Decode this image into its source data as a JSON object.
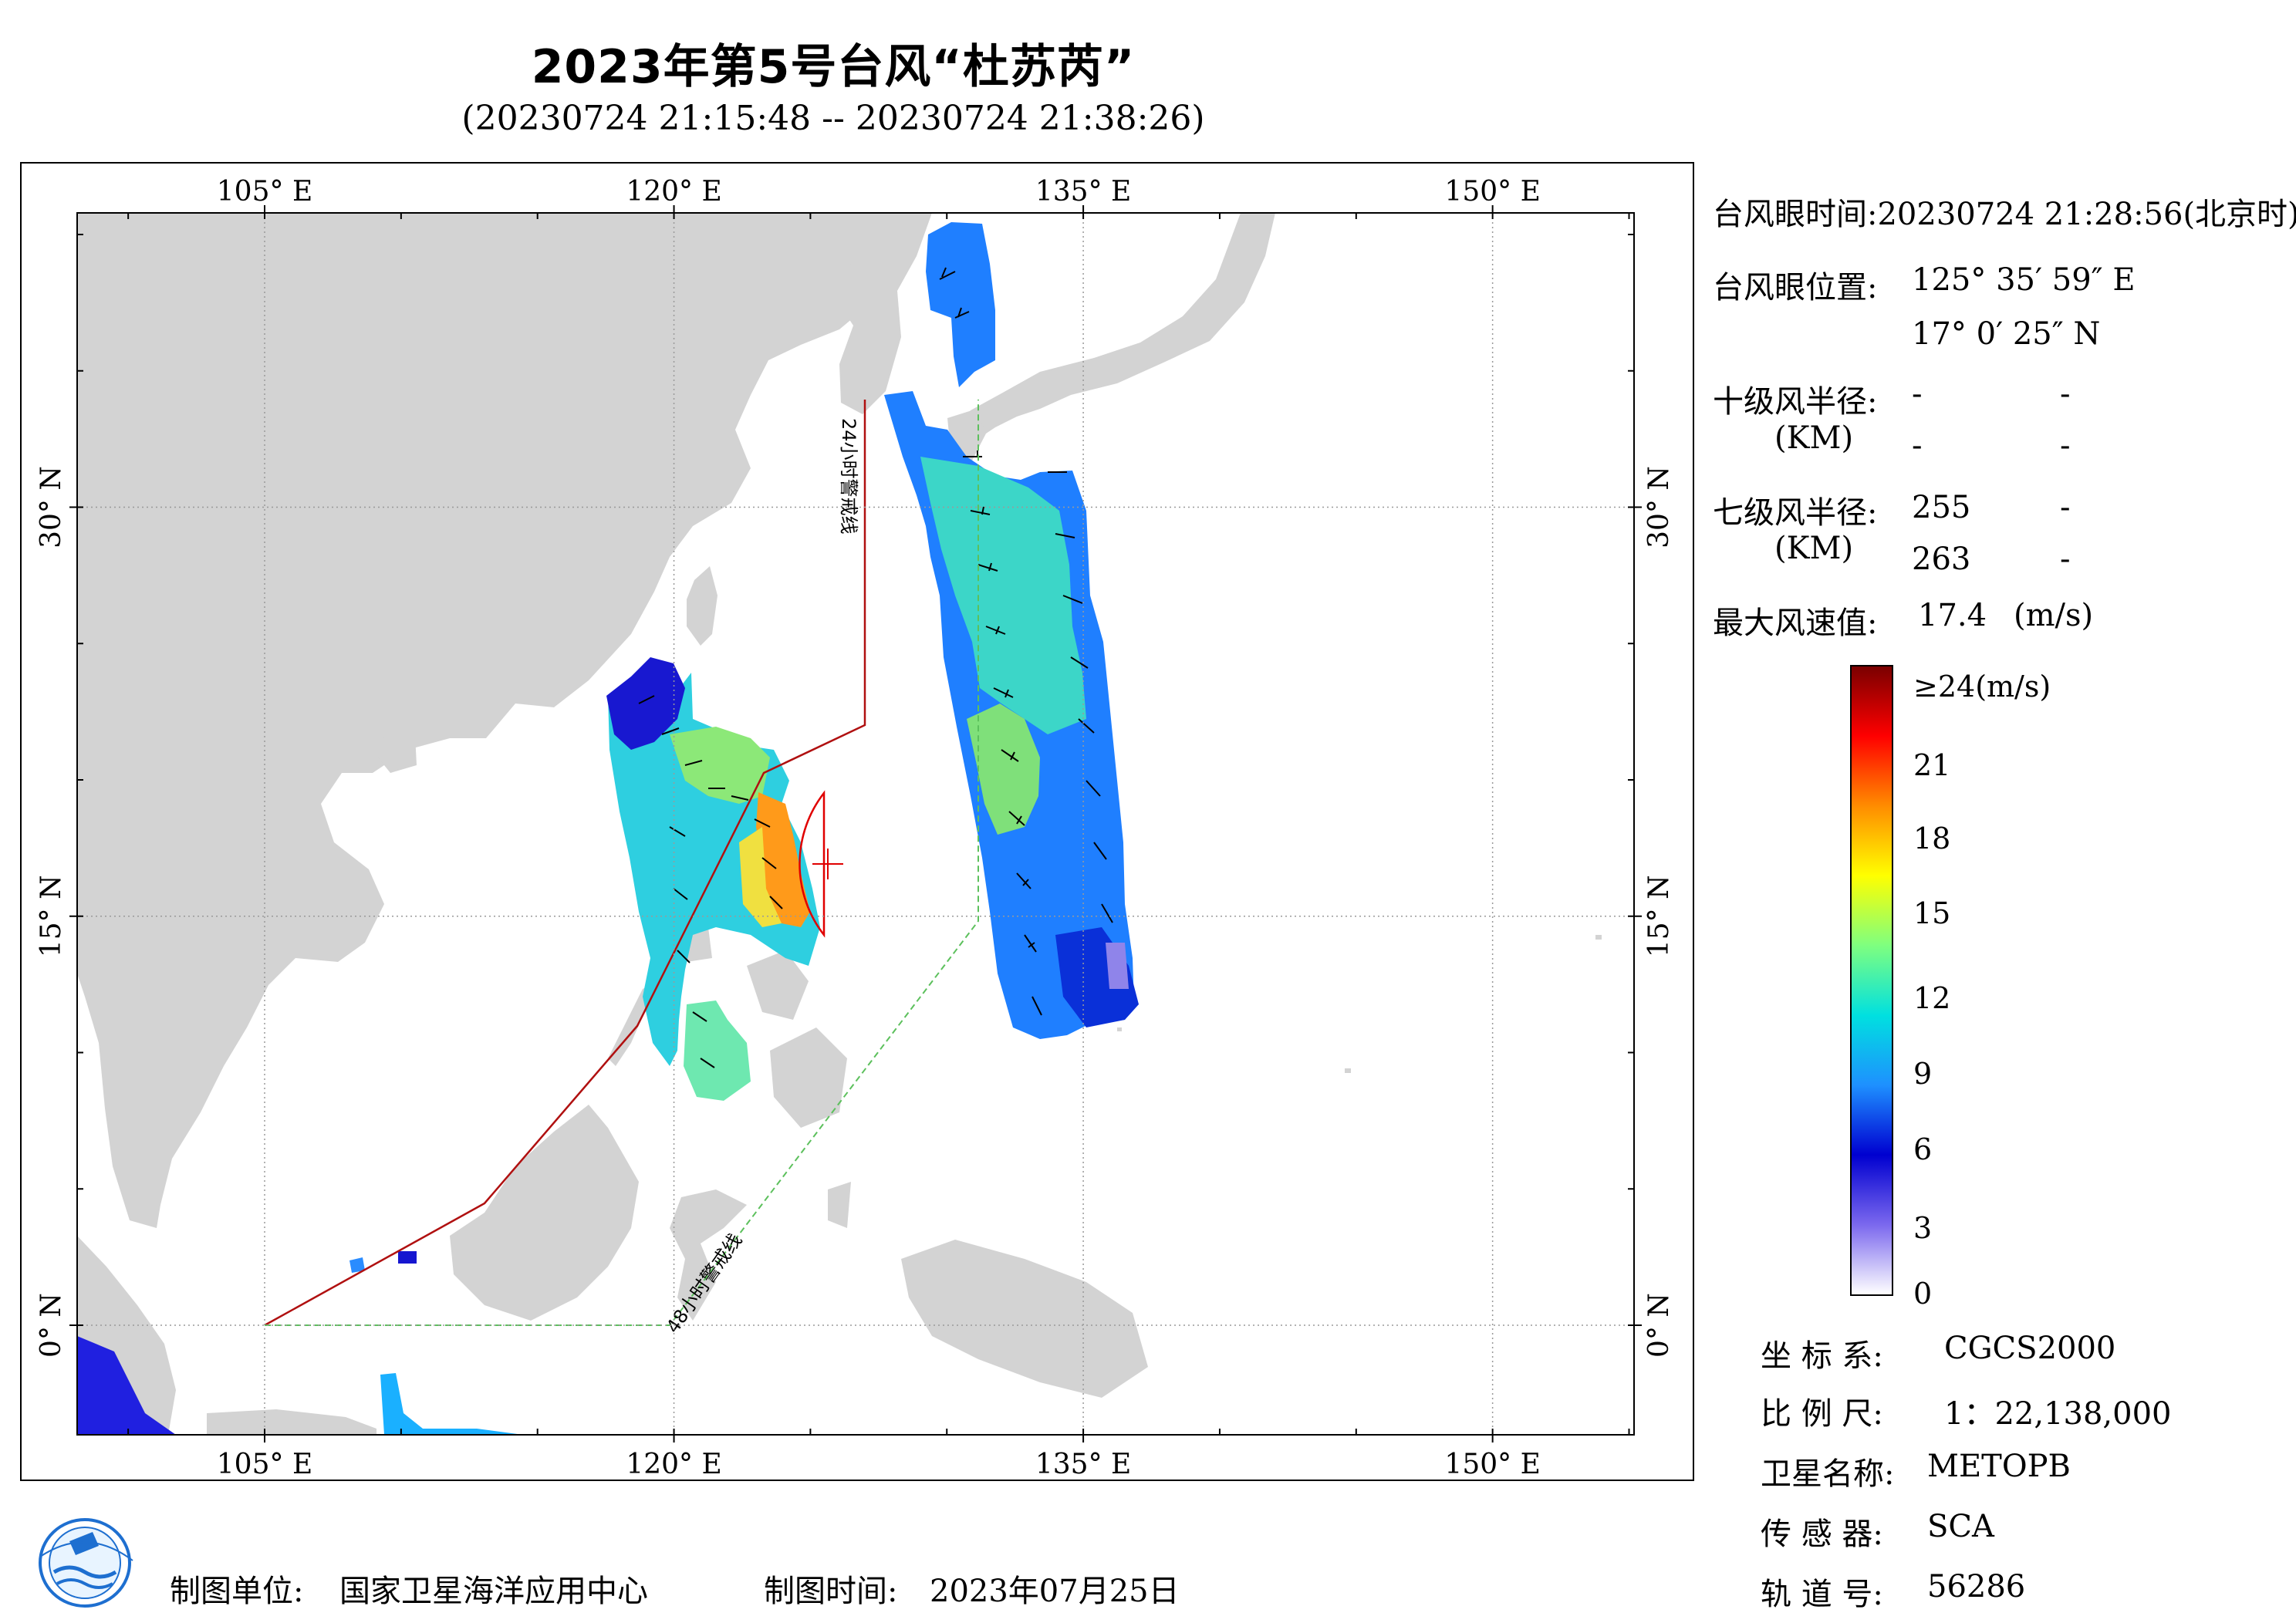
{
  "title": "2023年第5号台风“杜苏芮”",
  "subtitle": "(20230724 21:15:48 -- 20230724 21:38:26)",
  "map": {
    "lon_ticks": [
      {
        "lon": 105,
        "label": "105° E"
      },
      {
        "lon": 120,
        "label": "120° E"
      },
      {
        "lon": 135,
        "label": "135° E"
      },
      {
        "lon": 150,
        "label": "150° E"
      }
    ],
    "lat_ticks": [
      {
        "lat": 30,
        "label": "30° N"
      },
      {
        "lat": 15,
        "label": "15° N"
      },
      {
        "lat": 0,
        "label": "0° N"
      }
    ],
    "warning_24h_label": "24小时警戒线",
    "warning_48h_label": "48小时警戒线",
    "colors": {
      "land": "#d3d3d3",
      "sea": "#ffffff",
      "warning_24h": "#b01010",
      "warning_48h": "#5cc05c",
      "wind_radius": "#e00000"
    }
  },
  "info": {
    "eye_time_label": "台风眼时间:",
    "eye_time_value": "20230724 21:28:56(北京时)",
    "eye_pos_label": "台风眼位置:",
    "eye_lon": "125° 35′ 59″ E",
    "eye_lat": "17° 0′ 25″ N",
    "r10_label": "十级风半径:",
    "r10_unit": "(KM)",
    "r10_values": [
      "-",
      "-",
      "-",
      "-"
    ],
    "r7_label": "七级风半径:",
    "r7_unit": "(KM)",
    "r7_values": [
      "255",
      "-",
      "263",
      "-"
    ],
    "max_wind_label": "最大风速值:",
    "max_wind_value": "17.4",
    "max_wind_unit": "(m/s)"
  },
  "colorbar": {
    "top_label": "≥24(m/s)",
    "labels": [
      "21",
      "18",
      "15",
      "12",
      "9",
      "6",
      "3",
      "0"
    ],
    "stops": [
      "#ffffff",
      "#7b68ee",
      "#0000d0",
      "#1e90ff",
      "#00e0e0",
      "#7fff7f",
      "#ffff00",
      "#ff8c00",
      "#ff0000",
      "#7a0000"
    ]
  },
  "meta": {
    "crs_label": "坐 标 系:",
    "crs_value": "CGCS2000",
    "scale_label": "比 例 尺:",
    "scale_value": "1：22,138,000",
    "satellite_label": "卫星名称:",
    "satellite_value": "METOPB",
    "sensor_label": "传 感 器:",
    "sensor_value": "SCA",
    "orbit_label": "轨 道 号:",
    "orbit_value": "56286"
  },
  "footer": {
    "producer_label": "制图单位:",
    "producer_value": "国家卫星海洋应用中心",
    "date_label": "制图时间:",
    "date_value": "2023年07月25日"
  }
}
